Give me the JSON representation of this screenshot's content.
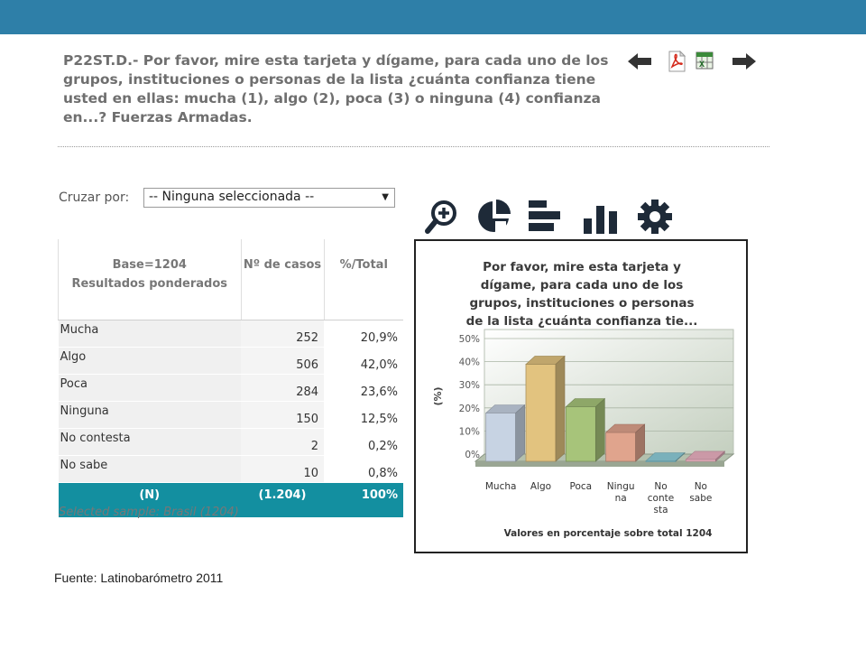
{
  "question": {
    "lines": [
      "P22ST.D.- Por favor, mire esta tarjeta y dígame, para cada uno de los",
      "grupos, instituciones o personas de la lista ¿cuánta confianza tiene",
      "usted en ellas: mucha (1), algo (2), poca (3) o ninguna (4) confianza",
      "en...? Fuerzas Armadas."
    ]
  },
  "cruzar": {
    "label": "Cruzar por:",
    "selected": "-- Ninguna seleccionada --"
  },
  "table": {
    "header": {
      "base": "Base=1204",
      "sub": "Resultados ponderados",
      "casos": "Nº de casos",
      "total": "%/Total"
    },
    "rows": [
      {
        "label": "Mucha",
        "casos": "252",
        "pct": "20,9%"
      },
      {
        "label": "Algo",
        "casos": "506",
        "pct": "42,0%"
      },
      {
        "label": "Poca",
        "casos": "284",
        "pct": "23,6%"
      },
      {
        "label": "Ninguna",
        "casos": "150",
        "pct": "12,5%"
      },
      {
        "label": "No contesta",
        "casos": "2",
        "pct": "0,2%"
      },
      {
        "label": "No sabe",
        "casos": "10",
        "pct": "0,8%"
      }
    ],
    "footer": {
      "n": "(N)",
      "casos": "(1.204)",
      "pct": "100%"
    }
  },
  "sample": "Selected sample: Brasil (1204)",
  "fuente": "Fuente: Latinobarómetro 2011",
  "icons": [
    "arrow-left-icon",
    "pdf-icon",
    "excel-icon",
    "arrow-right-icon",
    "zoom-in-icon",
    "pie-chart-icon",
    "horizontal-bar-icon",
    "vertical-bar-icon",
    "gear-icon"
  ],
  "colors": {
    "topbar": "#2e7fa8",
    "footer_row": "#138fa0"
  },
  "chart_data": {
    "type": "bar",
    "title_lines": [
      "Por favor, mire esta tarjeta y",
      "dígame, para cada uno de los",
      "grupos, instituciones o personas",
      "de la lista ¿cuánta confianza tie..."
    ],
    "ylabel": "(%)",
    "xlabel": "Valores en porcentaje sobre total 1204",
    "yticks": [
      "50%",
      "40%",
      "30%",
      "20%",
      "10%",
      "0%"
    ],
    "ylim": [
      0,
      50
    ],
    "grid": true,
    "categories": [
      [
        "Mucha"
      ],
      [
        "Algo"
      ],
      [
        "Poca"
      ],
      [
        "Ningu",
        "na"
      ],
      [
        "No",
        "conte",
        "sta"
      ],
      [
        "No",
        "sabe"
      ]
    ],
    "values": [
      20.9,
      42.0,
      23.6,
      12.5,
      0.2,
      0.8
    ],
    "bar_colors": [
      "#c7d3e3",
      "#e2c37f",
      "#a7c47a",
      "#e0a48d",
      "#8fd0dc",
      "#efb4c4"
    ]
  }
}
